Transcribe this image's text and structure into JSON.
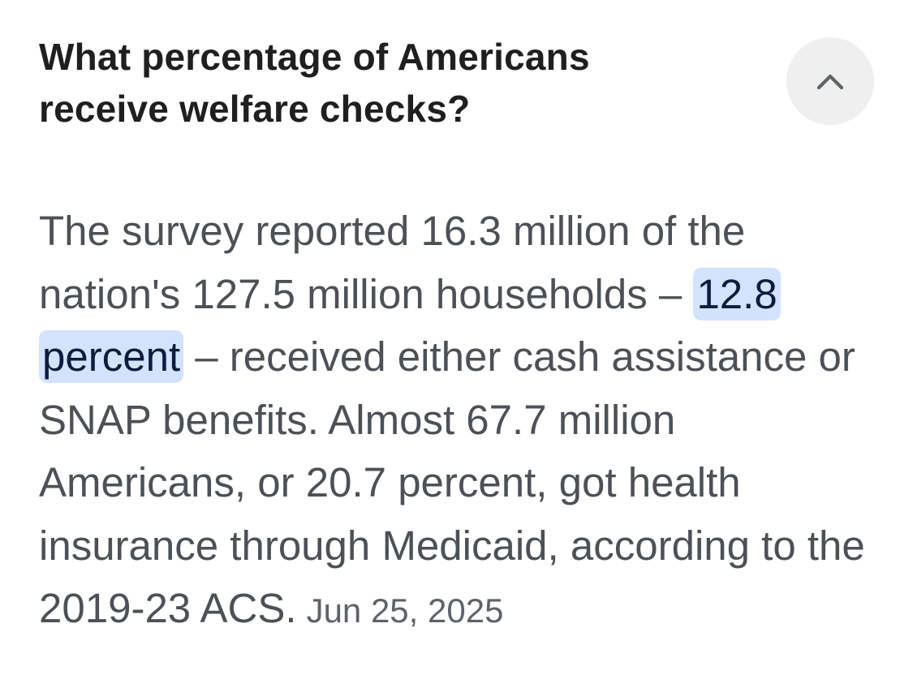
{
  "question": {
    "line1": "What percentage of Americans",
    "line2": "receive welfare checks?"
  },
  "toggle": {
    "icon": "chevron-up-icon",
    "state": "expanded"
  },
  "answer": {
    "part1": "The survey reported 16.3 million of the nation's 127.5 million households – ",
    "highlight": "12.8 percent",
    "part2": " – received either cash assistance or SNAP benefits. Almost 67.7 million Americans, or 20.7 percent, got health insurance through Medicaid, according to the 2019-23 ACS.",
    "date": "Jun 25, 2025"
  },
  "colors": {
    "question_text": "#1f1f1f",
    "answer_text": "#4d5156",
    "highlight_bg": "#d3e3fd",
    "highlight_text": "#0b1c3f",
    "toggle_bg": "#efefef",
    "date_text": "#5f6368"
  }
}
